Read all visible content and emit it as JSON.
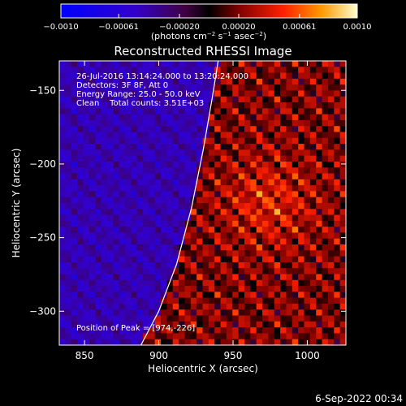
{
  "chart_data": {
    "type": "heatmap",
    "title": "Reconstructed RHESSI Image",
    "xlabel": "Heliocentric X (arcsec)",
    "ylabel": "Heliocentric Y (arcsec)",
    "xlim": [
      833,
      1026
    ],
    "ylim": [
      -323,
      -130
    ],
    "xticks": [
      850,
      900,
      950,
      1000
    ],
    "yticks": [
      -150,
      -200,
      -250,
      -300
    ],
    "xtick_labels": [
      "850",
      "900",
      "950",
      "1000"
    ],
    "ytick_labels": [
      "−150",
      "−200",
      "−250",
      "−300"
    ],
    "colorbar": {
      "min": -0.001,
      "max": 0.001,
      "ticks": [
        -0.001,
        -0.00061,
        -0.0002,
        0.0002,
        0.00061,
        0.001
      ],
      "tick_labels": [
        "−0.0010",
        "−0.00061",
        "−0.00020",
        "0.00020",
        "0.00061",
        "0.0010"
      ],
      "label_main": "(photons cm",
      "label_exp1": "−2",
      "label_mid": " s",
      "label_exp2": "−1",
      "label_tail": " asec",
      "label_exp3": "−2",
      "label_close": ")"
    },
    "info_lines": [
      "26-Jul-2016 13:14:24.000 to 13:20:24.000",
      "Detectors: 3F 8F, Att 0",
      "Energy Range: 25.0 - 50.0 keV",
      "Clean    Total counts: 3.51E+03"
    ],
    "peak_label": "Position of Peak = [974,-226]",
    "peak": [
      974,
      -226
    ],
    "limb_curve": [
      [
        888,
        -323
      ],
      [
        900,
        -300
      ],
      [
        912,
        -268
      ],
      [
        922,
        -230
      ],
      [
        930,
        -190
      ],
      [
        936,
        -155
      ],
      [
        940,
        -130
      ]
    ],
    "grid": false
  },
  "timestamp": "6-Sep-2022 00:34"
}
